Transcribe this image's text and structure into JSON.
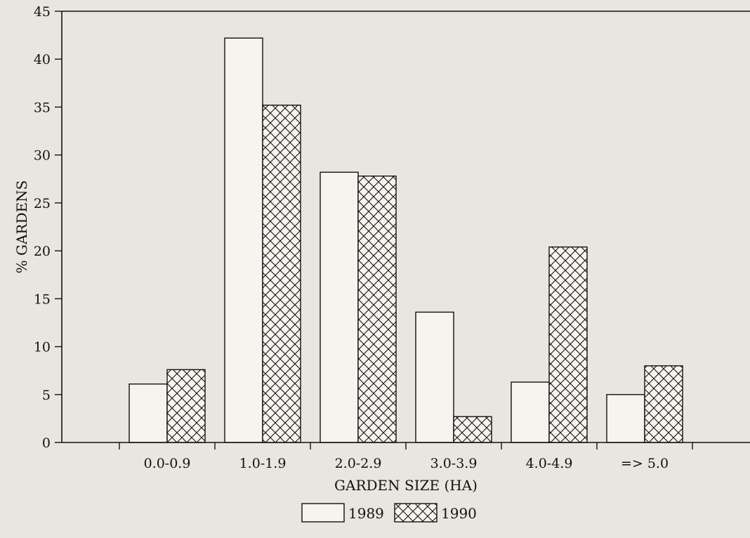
{
  "chart_data": {
    "type": "bar",
    "title": "",
    "xlabel": "GARDEN SIZE (HA)",
    "ylabel": "% GARDENS",
    "categories": [
      "0.0-0.9",
      "1.0-1.9",
      "2.0-2.9",
      "3.0-3.9",
      "4.0-4.9",
      "=> 5.0"
    ],
    "series": [
      {
        "name": "1989",
        "values": [
          6.1,
          42.2,
          28.2,
          13.6,
          6.3,
          5.0
        ],
        "pattern": "plain"
      },
      {
        "name": "1990",
        "values": [
          7.6,
          35.2,
          27.8,
          2.7,
          20.4,
          8.0
        ],
        "pattern": "crosshatch"
      }
    ],
    "ylim": [
      0,
      45
    ],
    "yticks": [
      0,
      5,
      10,
      15,
      20,
      25,
      30,
      35,
      40,
      45
    ],
    "grid": false,
    "legend": "bottom-center",
    "colors": {
      "background": "#e9e6df",
      "ink": "#111111",
      "bar_fill": "#f6f4ef"
    }
  }
}
